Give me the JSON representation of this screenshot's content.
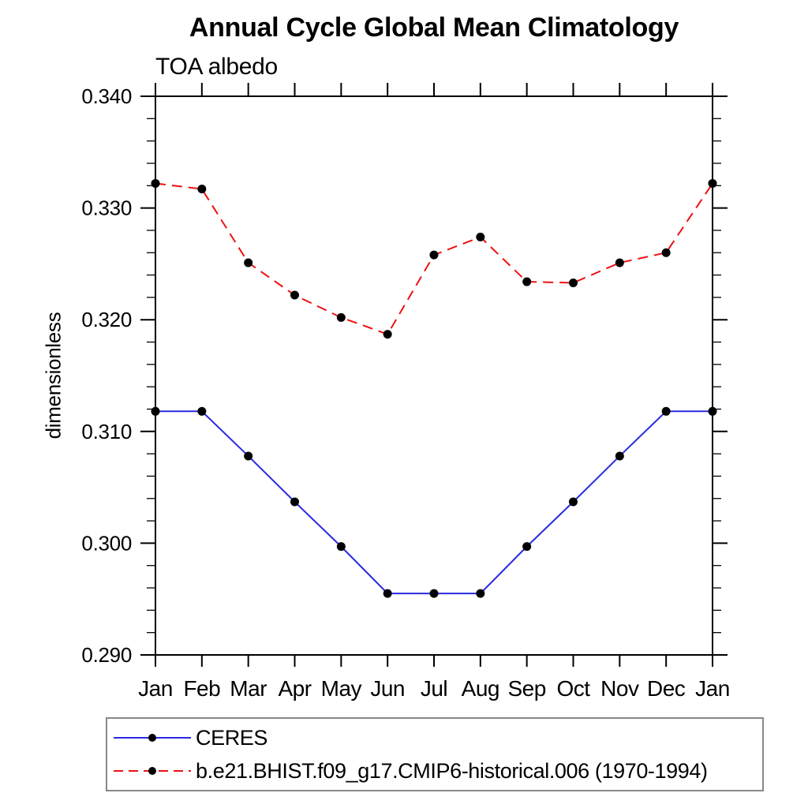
{
  "page": {
    "background": "#ffffff"
  },
  "chart_data": {
    "type": "line",
    "title": "Annual Cycle Global Mean Climatology",
    "subtitle": "TOA albedo",
    "ylabel": "dimensionless",
    "xlabel": "",
    "categories": [
      "Jan",
      "Feb",
      "Mar",
      "Apr",
      "May",
      "Jun",
      "Jul",
      "Aug",
      "Sep",
      "Oct",
      "Nov",
      "Dec",
      "Jan"
    ],
    "ylim": [
      0.29,
      0.34
    ],
    "ytick_values": [
      0.34,
      0.33,
      0.32,
      0.31,
      0.3,
      0.29
    ],
    "ytick_labels": [
      "0.340",
      "0.330",
      "0.320",
      "0.310",
      "0.300",
      "0.290"
    ],
    "minor_tick_interval": 0.002,
    "grid": false,
    "legend_position": "bottom-left",
    "axis_color": "#000000",
    "marker_color": "#000000",
    "series": [
      {
        "name": "CERES",
        "color": "#2a2ae0",
        "style": "solid",
        "marker": "black-dot",
        "values": [
          0.3118,
          0.3118,
          0.3078,
          0.3037,
          0.2997,
          0.2955,
          0.2955,
          0.2955,
          0.2997,
          0.3037,
          0.3078,
          0.3118,
          0.3118
        ]
      },
      {
        "name": "b.e21.BHIST.f09_g17.CMIP6-historical.006 (1970-1994)",
        "color": "#ee1111",
        "style": "dashed",
        "marker": "black-dot",
        "values": [
          0.3322,
          0.3317,
          0.3251,
          0.3222,
          0.3202,
          0.3187,
          0.3258,
          0.3274,
          0.3234,
          0.3233,
          0.3251,
          0.326,
          0.3322
        ]
      }
    ]
  }
}
